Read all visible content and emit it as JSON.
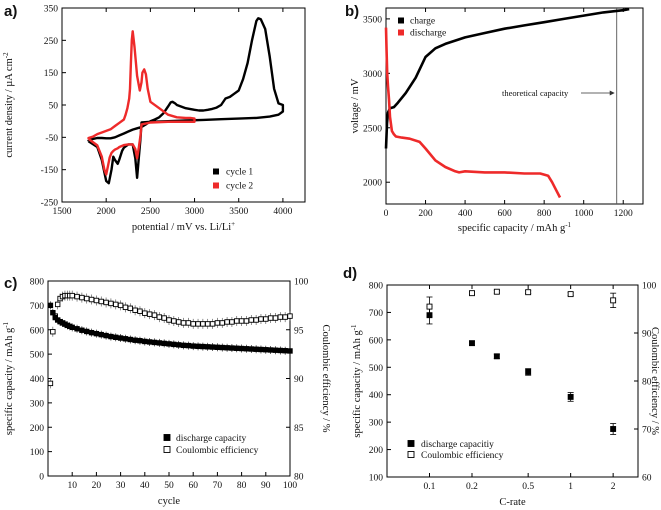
{
  "chart_data": [
    {
      "panel_label": "a)",
      "type": "line",
      "xlabel": "potential / mV vs. Li/Li",
      "xlabel_sup": "+",
      "ylabel": "current density / µA cm",
      "ylabel_sup": "-2",
      "xlim": [
        1500,
        4250
      ],
      "ylim": [
        -250,
        350
      ],
      "xticks": [
        1500,
        2000,
        2500,
        3000,
        3500,
        4000
      ],
      "yticks": [
        -250,
        -150,
        -50,
        50,
        150,
        250,
        350
      ],
      "legend_position": "bottom-right",
      "series": [
        {
          "name": "cycle 1",
          "color": "#000000",
          "x": [
            1800,
            1900,
            1950,
            2000,
            2030,
            2060,
            2080,
            2100,
            2130,
            2150,
            2180,
            2200,
            2250,
            2300,
            2330,
            2350,
            2370,
            2390,
            2400,
            2500,
            2700,
            2900,
            3100,
            3300,
            3500,
            3700,
            3850,
            3950,
            4000,
            4000,
            3950,
            3900,
            3850,
            3800,
            3750,
            3720,
            3700,
            3650,
            3600,
            3550,
            3500,
            3450,
            3400,
            3350,
            3300,
            3250,
            3200,
            3150,
            3100,
            3050,
            3000,
            2900,
            2850,
            2800,
            2780,
            2750,
            2730,
            2700,
            2650,
            2600,
            2550,
            2500,
            2450,
            2400,
            2350,
            2300,
            2250,
            2200,
            2150,
            2100,
            2050,
            2000,
            1950,
            1900,
            1850,
            1800,
            1800
          ],
          "y": [
            -62,
            -80,
            -120,
            -185,
            -192,
            -150,
            -110,
            -120,
            -132,
            -118,
            -92,
            -82,
            -72,
            -72,
            -115,
            -175,
            -110,
            -50,
            -4,
            -2,
            0,
            2,
            4,
            6,
            8,
            10,
            14,
            20,
            30,
            50,
            55,
            100,
            200,
            285,
            315,
            318,
            310,
            250,
            180,
            130,
            95,
            85,
            75,
            70,
            50,
            42,
            38,
            35,
            33,
            33,
            35,
            40,
            45,
            50,
            55,
            60,
            58,
            45,
            25,
            12,
            5,
            0,
            -10,
            -18,
            -22,
            -26,
            -32,
            -38,
            -44,
            -50,
            -53,
            -53,
            -52,
            -52,
            -55,
            -60,
            -62
          ]
        },
        {
          "name": "cycle 2",
          "color": "#ee2a2a",
          "x": [
            1800,
            1900,
            1950,
            1980,
            2000,
            2020,
            2040,
            2060,
            2080,
            2100,
            2130,
            2150,
            2200,
            2250,
            2300,
            2330,
            2350,
            2370,
            2390,
            2400,
            2500,
            2700,
            2900,
            3000,
            3000,
            2950,
            2900,
            2800,
            2700,
            2600,
            2500,
            2470,
            2450,
            2430,
            2410,
            2400,
            2380,
            2350,
            2320,
            2300,
            2290,
            2280,
            2270,
            2260,
            2240,
            2220,
            2200,
            2150,
            2100,
            2050,
            2000,
            1950,
            1900,
            1850,
            1800,
            1800
          ],
          "y": [
            -55,
            -75,
            -110,
            -150,
            -165,
            -140,
            -112,
            -98,
            -92,
            -88,
            -84,
            -80,
            -74,
            -72,
            -72,
            -86,
            -115,
            -80,
            -42,
            -10,
            -4,
            -2,
            -2,
            -2,
            8,
            10,
            10,
            12,
            20,
            40,
            60,
            100,
            145,
            160,
            150,
            120,
            95,
            140,
            230,
            278,
            250,
            180,
            100,
            70,
            40,
            20,
            5,
            -5,
            -15,
            -25,
            -30,
            -35,
            -40,
            -48,
            -52,
            -55
          ]
        }
      ]
    },
    {
      "panel_label": "b)",
      "type": "line",
      "xlabel": "specific capacity / mAh g",
      "xlabel_sup": "-1",
      "ylabel": "voltage / mV",
      "xlim": [
        0,
        1300
      ],
      "ylim": [
        1800,
        3600
      ],
      "xticks": [
        0,
        200,
        400,
        600,
        800,
        1000,
        1200
      ],
      "yticks": [
        2000,
        2500,
        3000,
        3500
      ],
      "legend_position": "top-left",
      "theoretical_capacity": 1167,
      "annotation": "theoretical capacity",
      "series": [
        {
          "name": "charge",
          "color": "#000000",
          "x": [
            0,
            5,
            10,
            20,
            40,
            60,
            100,
            150,
            200,
            250,
            300,
            400,
            500,
            600,
            700,
            800,
            900,
            1000,
            1100,
            1200,
            1230
          ],
          "y": [
            2310,
            2540,
            2640,
            2680,
            2690,
            2730,
            2820,
            2960,
            3150,
            3230,
            3270,
            3330,
            3370,
            3410,
            3440,
            3470,
            3500,
            3530,
            3560,
            3580,
            3590
          ]
        },
        {
          "name": "discharge",
          "color": "#ee2a2a",
          "x": [
            0,
            3,
            6,
            10,
            15,
            20,
            30,
            40,
            50,
            80,
            120,
            170,
            200,
            250,
            300,
            350,
            370,
            400,
            500,
            600,
            700,
            780,
            820,
            840,
            860,
            880
          ],
          "y": [
            3420,
            3200,
            3000,
            2880,
            2760,
            2600,
            2470,
            2440,
            2420,
            2410,
            2400,
            2370,
            2310,
            2200,
            2140,
            2100,
            2090,
            2100,
            2090,
            2090,
            2080,
            2080,
            2060,
            2000,
            1930,
            1860
          ]
        }
      ]
    },
    {
      "panel_label": "c)",
      "type": "scatter",
      "xlabel": "cycle",
      "ylabel": "specific capacity / mAh g",
      "ylabel_sup": "-1",
      "y2label": "Coulombic efficiency / %",
      "xlim": [
        0,
        100
      ],
      "ylim": [
        0,
        800
      ],
      "y2lim": [
        80,
        100
      ],
      "xticks": [
        10,
        20,
        30,
        40,
        50,
        60,
        70,
        80,
        90,
        100
      ],
      "yticks": [
        0,
        100,
        200,
        300,
        400,
        500,
        600,
        700,
        800
      ],
      "y2ticks": [
        80,
        85,
        90,
        95,
        100
      ],
      "legend_position": "bottom-center",
      "series": [
        {
          "name": "discharge capacity",
          "marker": "filled-square",
          "axis": "left",
          "points": [
            [
              1,
              700
            ],
            [
              2,
              670
            ],
            [
              3,
              650
            ],
            [
              4,
              640
            ],
            [
              5,
              633
            ],
            [
              6,
              628
            ],
            [
              7,
              623
            ],
            [
              8,
              618
            ],
            [
              9,
              614
            ],
            [
              10,
              610
            ],
            [
              12,
              604
            ],
            [
              14,
              598
            ],
            [
              16,
              593
            ],
            [
              18,
              588
            ],
            [
              20,
              584
            ],
            [
              22,
              580
            ],
            [
              24,
              576
            ],
            [
              26,
              572
            ],
            [
              28,
              569
            ],
            [
              30,
              566
            ],
            [
              32,
              563
            ],
            [
              34,
              560
            ],
            [
              36,
              557
            ],
            [
              38,
              555
            ],
            [
              40,
              552
            ],
            [
              42,
              550
            ],
            [
              44,
              548
            ],
            [
              46,
              546
            ],
            [
              48,
              544
            ],
            [
              50,
              542
            ],
            [
              52,
              540
            ],
            [
              54,
              538
            ],
            [
              56,
              536
            ],
            [
              58,
              535
            ],
            [
              60,
              533
            ],
            [
              62,
              532
            ],
            [
              64,
              531
            ],
            [
              66,
              530
            ],
            [
              68,
              529
            ],
            [
              70,
              528
            ],
            [
              72,
              527
            ],
            [
              74,
              526
            ],
            [
              76,
              525
            ],
            [
              78,
              524
            ],
            [
              80,
              523
            ],
            [
              82,
              522
            ],
            [
              84,
              521
            ],
            [
              86,
              520
            ],
            [
              88,
              519
            ],
            [
              90,
              518
            ],
            [
              92,
              517
            ],
            [
              94,
              516
            ],
            [
              96,
              515
            ],
            [
              98,
              514
            ],
            [
              100,
              513
            ]
          ]
        },
        {
          "name": "Coulombic efficiency",
          "marker": "open-square",
          "axis": "right",
          "points": [
            [
              1,
              89.5
            ],
            [
              2,
              94.8
            ],
            [
              3,
              96.4
            ],
            [
              4,
              97.6
            ],
            [
              5,
              98.2
            ],
            [
              6,
              98.4
            ],
            [
              7,
              98.5
            ],
            [
              8,
              98.5
            ],
            [
              9,
              98.5
            ],
            [
              10,
              98.5
            ],
            [
              12,
              98.4
            ],
            [
              14,
              98.3
            ],
            [
              16,
              98.2
            ],
            [
              18,
              98.1
            ],
            [
              20,
              98.0
            ],
            [
              22,
              97.9
            ],
            [
              24,
              97.8
            ],
            [
              26,
              97.7
            ],
            [
              28,
              97.6
            ],
            [
              30,
              97.5
            ],
            [
              32,
              97.3
            ],
            [
              34,
              97.2
            ],
            [
              36,
              97.0
            ],
            [
              38,
              96.9
            ],
            [
              40,
              96.7
            ],
            [
              42,
              96.6
            ],
            [
              44,
              96.5
            ],
            [
              46,
              96.3
            ],
            [
              48,
              96.2
            ],
            [
              50,
              96.0
            ],
            [
              52,
              95.9
            ],
            [
              54,
              95.8
            ],
            [
              56,
              95.7
            ],
            [
              58,
              95.7
            ],
            [
              60,
              95.6
            ],
            [
              62,
              95.6
            ],
            [
              64,
              95.6
            ],
            [
              66,
              95.6
            ],
            [
              68,
              95.6
            ],
            [
              70,
              95.7
            ],
            [
              72,
              95.7
            ],
            [
              74,
              95.8
            ],
            [
              76,
              95.8
            ],
            [
              78,
              95.9
            ],
            [
              80,
              95.9
            ],
            [
              82,
              95.9
            ],
            [
              84,
              96.0
            ],
            [
              86,
              96.0
            ],
            [
              88,
              96.1
            ],
            [
              90,
              96.1
            ],
            [
              92,
              96.2
            ],
            [
              94,
              96.2
            ],
            [
              96,
              96.3
            ],
            [
              98,
              96.3
            ],
            [
              100,
              96.4
            ]
          ]
        }
      ]
    },
    {
      "panel_label": "d)",
      "type": "scatter",
      "xlabel": "C-rate",
      "ylabel": "specific capacity / mAh g",
      "ylabel_sup": "-1",
      "y2label": "Coulombic efficiency / %",
      "xscale": "log",
      "xlim": [
        0.05,
        3
      ],
      "ylim": [
        100,
        800
      ],
      "y2lim": [
        60,
        100
      ],
      "xticks": [
        0.1,
        0.2,
        0.5,
        1,
        2
      ],
      "xticklabels": [
        "0.1",
        "0.2",
        "0.5",
        "1",
        "2"
      ],
      "yticks": [
        100,
        200,
        300,
        400,
        500,
        600,
        700,
        800
      ],
      "y2ticks": [
        60,
        70,
        80,
        90,
        100
      ],
      "legend_position": "bottom-center",
      "series": [
        {
          "name": "discharge capacitiy",
          "marker": "filled-square",
          "axis": "left",
          "x": [
            0.1,
            0.2,
            0.3,
            0.5,
            1,
            2
          ],
          "values": [
            690,
            588,
            540,
            483,
            392,
            275
          ],
          "errors": [
            32,
            8,
            8,
            12,
            16,
            20
          ]
        },
        {
          "name": "Coulombic efficiency",
          "marker": "open-square",
          "axis": "right",
          "x": [
            0.1,
            0.2,
            0.3,
            0.5,
            1,
            2
          ],
          "values": [
            95.5,
            98.3,
            98.6,
            98.5,
            98.1,
            96.8
          ],
          "errors": [
            2.0,
            0.3,
            0.3,
            0.3,
            0.3,
            1.5
          ]
        }
      ]
    }
  ]
}
